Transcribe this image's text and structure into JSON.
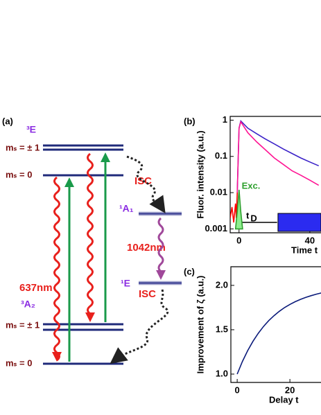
{
  "diagram": {
    "panel_label": "(a)",
    "state_3E": "³E",
    "ms_pm1_upper": "mₛ = ± 1",
    "ms_0_upper": "mₛ = 0",
    "isc_upper": "ISC",
    "state_1A1": "¹A₁",
    "ir_line": "1042nm",
    "state_1E": "¹E",
    "isc_lower": "ISC",
    "zpl": "637nm",
    "state_3A2": "³A₂",
    "ms_pm1_lower": "mₛ = ± 1",
    "ms_0_lower": "mₛ = 0"
  },
  "chart_data": [
    {
      "type": "line",
      "panel_label": "(b)",
      "ylabel": "Fluor. intensity (a.u.)",
      "xlabel": "Time t",
      "log_y": true,
      "xlim": [
        -5,
        46.3
      ],
      "ylim": [
        0.00078,
        1.27
      ],
      "xticks": [
        0,
        40
      ],
      "yticks": [
        {
          "value": 0.001,
          "label": "0.001"
        },
        {
          "value": 0.01,
          "label": "0.01"
        },
        {
          "value": 0.1,
          "label": "0.1"
        },
        1
      ],
      "series": [
        {
          "color": "#3b22c8",
          "x": [
            -1,
            0,
            1,
            5,
            10,
            15,
            20,
            25,
            30,
            35,
            40,
            45
          ],
          "values": [
            0.01,
            0.6,
            0.95,
            0.6,
            0.42,
            0.3,
            0.22,
            0.16,
            0.12,
            0.09,
            0.07,
            0.055
          ]
        },
        {
          "color": "#ff1493",
          "x": [
            -1,
            0,
            1,
            5,
            10,
            15,
            20,
            25,
            30,
            35,
            40,
            45
          ],
          "values": [
            0.01,
            0.6,
            0.9,
            0.45,
            0.25,
            0.15,
            0.09,
            0.06,
            0.04,
            0.03,
            0.022,
            0.016
          ]
        },
        {
          "color": "#ff0000",
          "x": [
            -5,
            -4,
            -3,
            -2,
            -1.5,
            -1
          ],
          "values": [
            0.002,
            0.004,
            0.0015,
            0.005,
            0.002,
            0.01
          ]
        },
        {
          "color": "#2ea02e",
          "fill": "#90ee90",
          "x": [
            -2,
            -1,
            0,
            1,
            2
          ],
          "values": [
            0.001,
            0.003,
            0.012,
            0.003,
            0.001
          ]
        }
      ],
      "annotations": {
        "excitation": "Exc.",
        "delay": "t",
        "delay_sub": "D"
      }
    },
    {
      "type": "line",
      "panel_label": "(c)",
      "ylabel": "Improvement of ζ (a.u.)",
      "xlabel": "Delay t",
      "log_y": false,
      "xlim": [
        -2.4,
        31.8
      ],
      "ylim": [
        0.906,
        2.21
      ],
      "xticks": [
        0,
        20
      ],
      "yticks": [
        {
          "value": 1.0,
          "label": "1.0"
        },
        {
          "value": 1.5,
          "label": "1.5"
        },
        {
          "value": 2.0,
          "label": "2.0"
        }
      ],
      "series": [
        {
          "color": "#0a1a7a",
          "x": [
            0,
            2,
            4,
            6,
            8,
            10,
            12,
            14,
            16,
            18,
            20,
            22,
            24,
            26,
            28,
            30,
            32
          ],
          "values": [
            1,
            1.143,
            1.265,
            1.37,
            1.46,
            1.537,
            1.603,
            1.659,
            1.708,
            1.75,
            1.785,
            1.816,
            1.842,
            1.865,
            1.884,
            1.901,
            1.915
          ]
        }
      ]
    }
  ]
}
